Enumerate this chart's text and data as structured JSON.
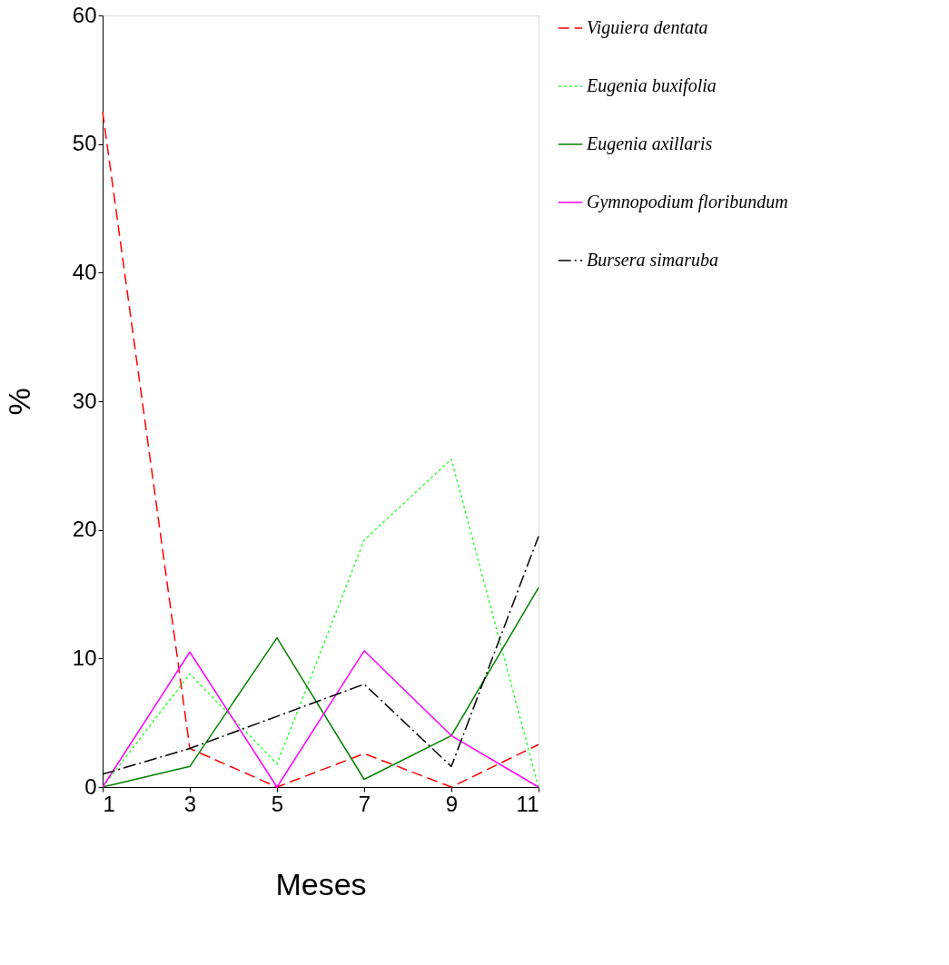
{
  "chart_data": {
    "type": "line",
    "xlabel": "Meses",
    "ylabel": "%",
    "x": [
      1,
      3,
      5,
      7,
      9,
      11
    ],
    "xlim": [
      1,
      11
    ],
    "xticks": [
      1,
      3,
      5,
      7,
      9,
      11
    ],
    "ylim": [
      0,
      60
    ],
    "yticks": [
      0,
      10,
      20,
      30,
      40,
      50,
      60
    ],
    "grid": false,
    "legend": "right",
    "marker": "none",
    "series": [
      {
        "name": "Viguiera dentata",
        "color": "#ff0000",
        "line_style": "dashed",
        "values": [
          52.5,
          3.0,
          0,
          2.6,
          0,
          3.3
        ]
      },
      {
        "name": "Eugenia buxifolia",
        "color": "#33ff33",
        "line_style": "dotted",
        "values": [
          0,
          8.8,
          1.8,
          19.2,
          25.5,
          0
        ]
      },
      {
        "name": "Eugenia axillaris",
        "color": "#008000",
        "line_style": "solid",
        "values": [
          0,
          1.6,
          11.6,
          0.6,
          4.0,
          15.5
        ]
      },
      {
        "name": "Gymnopodium floribundum",
        "color": "#ff00ff",
        "line_style": "solid",
        "values": [
          0,
          10.5,
          0,
          10.6,
          4.0,
          0
        ]
      },
      {
        "name": "Bursera simaruba",
        "color": "#000000",
        "line_style": "dashdot",
        "values": [
          1.0,
          3.0,
          5.5,
          8.0,
          1.6,
          19.5
        ]
      }
    ]
  }
}
